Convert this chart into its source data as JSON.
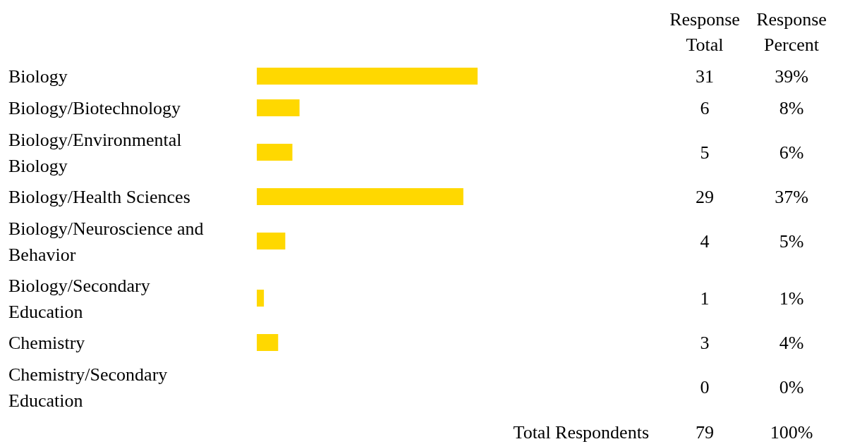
{
  "chart_data": {
    "type": "bar",
    "orientation": "horizontal",
    "categories": [
      "Biology",
      "Biology/Biotechnology",
      "Biology/Environmental Biology",
      "Biology/Health Sciences",
      "Biology/Neuroscience and Behavior",
      "Biology/Secondary Education",
      "Chemistry",
      "Chemistry/Secondary Education"
    ],
    "values": [
      31,
      6,
      5,
      29,
      4,
      1,
      3,
      0
    ],
    "color": "#ffd800",
    "data_labels": true,
    "annotations": [
      "Response Total",
      "Response Percent",
      "Total Respondents",
      "79",
      "100%",
      "39%",
      "8%",
      "6%",
      "37%",
      "5%",
      "1%",
      "4%",
      "0%"
    ]
  }
}
